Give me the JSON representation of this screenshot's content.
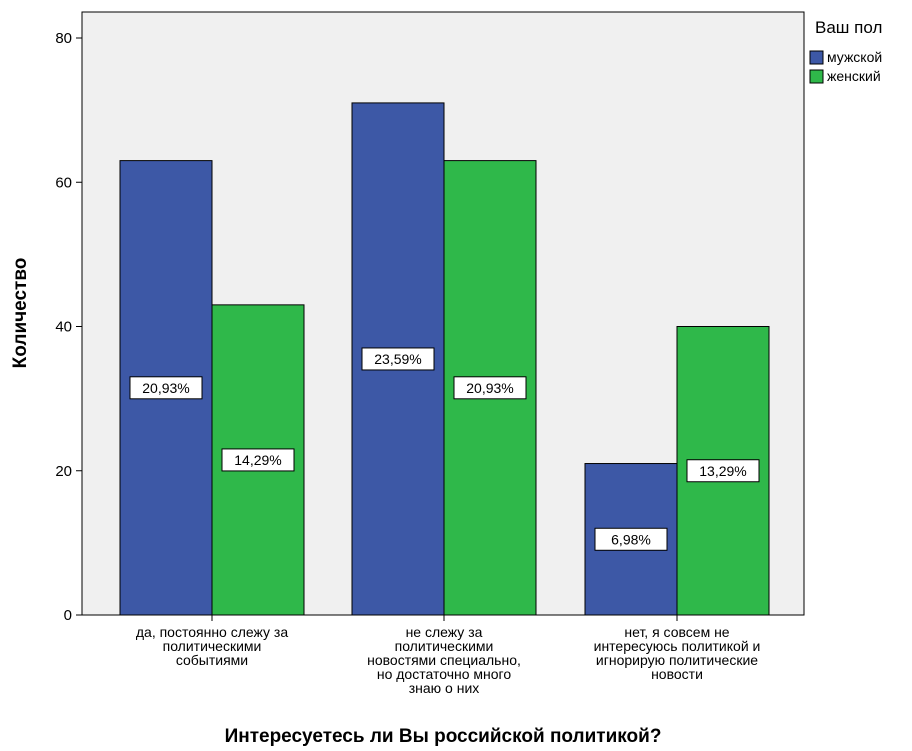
{
  "chart_data": {
    "type": "bar",
    "title": "",
    "xlabel": "Интересуетесь ли Вы российской политикой?",
    "ylabel": "Количество",
    "ylim": [
      0,
      84
    ],
    "yticks": [
      0,
      20,
      40,
      60,
      80
    ],
    "grid": false,
    "legend_title": "Ваш пол",
    "legend_position": "top-right",
    "categories": [
      [
        "да, постоянно слежу за",
        "политическими",
        "событиями"
      ],
      [
        "не слежу за",
        "политическими",
        "новостями специально,",
        "но достаточно много",
        "знаю о них"
      ],
      [
        "нет, я совсем не",
        "интересуюсь политикой и",
        "игнорирую политические",
        "новости"
      ]
    ],
    "series": [
      {
        "name": "мужской",
        "color": "#3d58a6",
        "values": [
          63,
          71,
          21
        ],
        "labels": [
          "20,93%",
          "23,59%",
          "6,98%"
        ]
      },
      {
        "name": "женский",
        "color": "#2fb84a",
        "values": [
          43,
          63,
          40
        ],
        "labels": [
          "14,29%",
          "20,93%",
          "13,29%"
        ]
      }
    ]
  }
}
